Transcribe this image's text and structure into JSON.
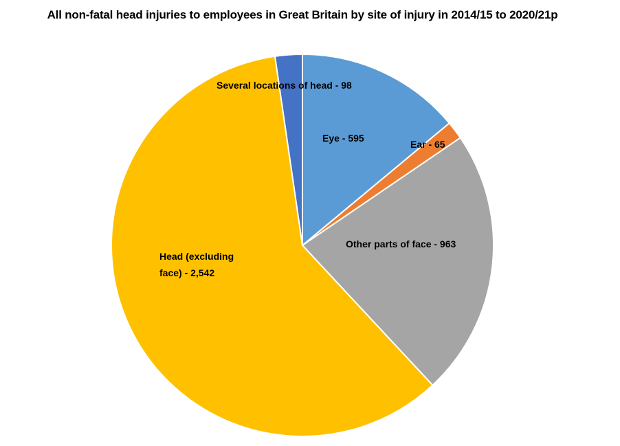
{
  "chart_data": {
    "type": "pie",
    "title": "All non-fatal head injuries to employees in Great Britain by site of injury in 2014/15 to 2020/21p",
    "categories": [
      "Eye",
      "Ear",
      "Other parts of face",
      "Head (excluding face)",
      "Several locations of head"
    ],
    "values": [
      595,
      65,
      963,
      2542,
      98
    ],
    "data_labels": [
      "Eye - 595",
      "Ear - 65",
      "Other parts of face - 963",
      "Head (excluding face) - 2,542",
      "Several locations of head - 98"
    ],
    "colors": [
      "#5B9BD5",
      "#ED7D31",
      "#A5A5A5",
      "#FFC000",
      "#4472C4"
    ],
    "start_angle": "12 o'clock",
    "direction": "clockwise",
    "legend": "none"
  }
}
